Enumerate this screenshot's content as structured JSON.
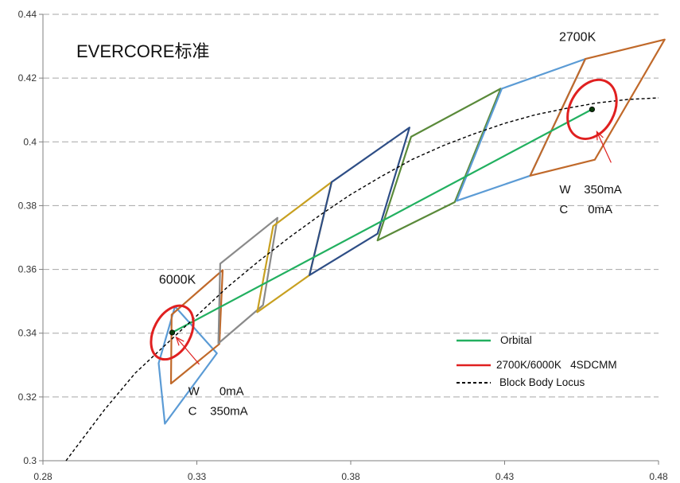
{
  "chart_data": {
    "type": "line",
    "title": "EVERCORE标准",
    "xlabel": "",
    "ylabel": "",
    "xlim": [
      0.28,
      0.48
    ],
    "ylim": [
      0.3,
      0.44
    ],
    "x_ticks": [
      "0.28",
      "0.33",
      "0.38",
      "0.43",
      "0.48"
    ],
    "y_ticks": [
      "0.3",
      "0.32",
      "0.34",
      "0.36",
      "0.38",
      "0.4",
      "0.42",
      "0.44"
    ],
    "grid": "horizontal dashed",
    "legend_position": "lower-right",
    "legend": [
      {
        "label": "Orbital",
        "color": "#22b060",
        "style": "solid"
      },
      {
        "label": "2700K/6000K   4SDCMM",
        "color": "#e02020",
        "style": "solid"
      },
      {
        "label": "Block Body Locus",
        "color": "#000000",
        "style": "dashed"
      }
    ],
    "series": [
      {
        "name": "Orbital",
        "color": "#22b060",
        "points": [
          [
            0.322,
            0.3402
          ],
          [
            0.4584,
            0.4102
          ]
        ]
      },
      {
        "name": "Block Body Locus",
        "color": "#000000",
        "points": [
          [
            0.2875,
            0.3
          ],
          [
            0.3,
            0.316
          ],
          [
            0.31,
            0.3275
          ],
          [
            0.32,
            0.3365
          ],
          [
            0.33,
            0.3455
          ],
          [
            0.34,
            0.3545
          ],
          [
            0.35,
            0.3625
          ],
          [
            0.36,
            0.37
          ],
          [
            0.37,
            0.377
          ],
          [
            0.38,
            0.3835
          ],
          [
            0.39,
            0.3892
          ],
          [
            0.4,
            0.3945
          ],
          [
            0.41,
            0.3988
          ],
          [
            0.42,
            0.4025
          ],
          [
            0.43,
            0.4058
          ],
          [
            0.44,
            0.4085
          ],
          [
            0.45,
            0.4105
          ],
          [
            0.46,
            0.4122
          ],
          [
            0.47,
            0.4133
          ],
          [
            0.48,
            0.4138
          ]
        ]
      }
    ],
    "ellipses": [
      {
        "label": "6000K",
        "center": [
          0.322,
          0.3402
        ],
        "semi_axes": [
          0.006,
          0.009
        ],
        "color": "#e02020"
      },
      {
        "label": "2700K",
        "center": [
          0.4584,
          0.4102
        ],
        "semi_axes": [
          0.0072,
          0.0098
        ],
        "color": "#e02020"
      }
    ],
    "quadrangles": [
      {
        "color": "#5b9bd5",
        "points": [
          [
            0.3229,
            0.3484
          ],
          [
            0.3176,
            0.3306
          ],
          [
            0.3196,
            0.3116
          ],
          [
            0.3365,
            0.3337
          ]
        ]
      },
      {
        "color": "#c0692a",
        "points": [
          [
            0.3384,
            0.3598
          ],
          [
            0.3218,
            0.3458
          ],
          [
            0.3216,
            0.3242
          ],
          [
            0.3373,
            0.3366
          ]
        ]
      },
      {
        "color": "#8a8a8a",
        "points": [
          [
            0.3562,
            0.3762
          ],
          [
            0.3376,
            0.3618
          ],
          [
            0.337,
            0.3368
          ],
          [
            0.3515,
            0.3488
          ]
        ]
      },
      {
        "color": "#c8a020",
        "points": [
          [
            0.3738,
            0.3874
          ],
          [
            0.3548,
            0.3736
          ],
          [
            0.3496,
            0.3466
          ],
          [
            0.3666,
            0.3582
          ]
        ]
      },
      {
        "color": "#2e4e86",
        "points": [
          [
            0.3991,
            0.4045
          ],
          [
            0.3738,
            0.3874
          ],
          [
            0.3666,
            0.3582
          ],
          [
            0.3887,
            0.3712
          ]
        ]
      },
      {
        "color": "#5a8a3a",
        "points": [
          [
            0.4287,
            0.4167
          ],
          [
            0.3996,
            0.4016
          ],
          [
            0.3887,
            0.3691
          ],
          [
            0.4138,
            0.3811
          ]
        ]
      },
      {
        "color": "#5b9bd5",
        "points": [
          [
            0.4562,
            0.426
          ],
          [
            0.4291,
            0.4167
          ],
          [
            0.4144,
            0.3815
          ],
          [
            0.4383,
            0.3894
          ]
        ]
      },
      {
        "color": "#c0692a",
        "points": [
          [
            0.482,
            0.4321
          ],
          [
            0.4562,
            0.426
          ],
          [
            0.4383,
            0.3894
          ],
          [
            0.4593,
            0.3944
          ]
        ]
      }
    ],
    "annotations": [
      {
        "text": "6000K",
        "point": [
          0.3177,
          0.3555
        ]
      },
      {
        "text": "2700K",
        "point": [
          0.4477,
          0.4317
        ]
      },
      {
        "lines": [
          "W      0mA",
          "C    350mA"
        ],
        "point": [
          0.3272,
          0.3206
        ]
      },
      {
        "lines": [
          "W    350mA",
          "C      0mA"
        ],
        "point": [
          0.4478,
          0.3838
        ]
      }
    ]
  }
}
